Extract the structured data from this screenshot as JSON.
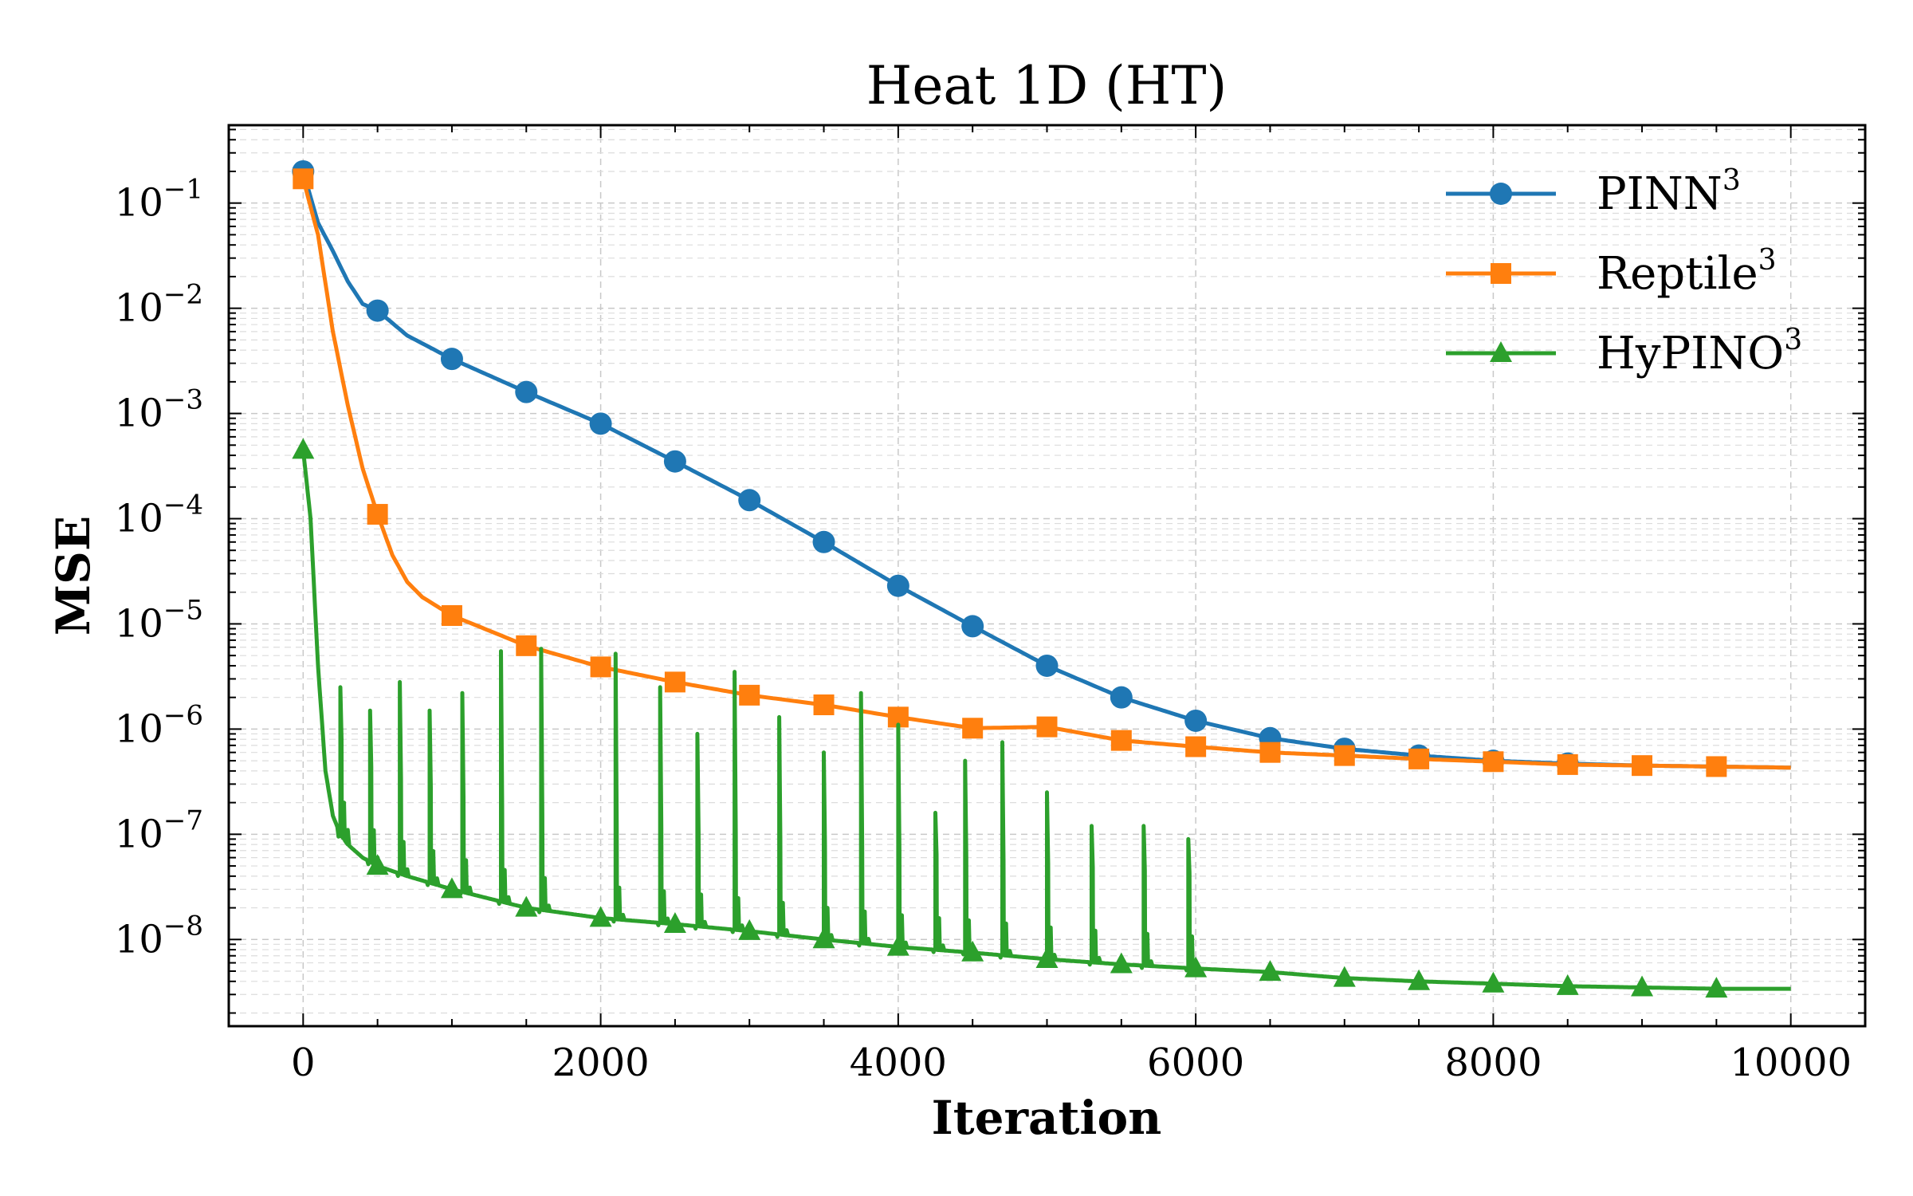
{
  "chart_data": {
    "type": "line",
    "title": "Heat 1D (HT)",
    "xlabel": "Iteration",
    "ylabel": "MSE",
    "yscale": "log",
    "xlim": [
      -500,
      10500
    ],
    "ylim": [
      1.5e-09,
      0.55
    ],
    "xticks": [
      0,
      2000,
      4000,
      6000,
      8000,
      10000
    ],
    "xtick_labels": [
      "0",
      "2000",
      "4000",
      "6000",
      "8000",
      "10000"
    ],
    "yticks": [
      {
        "value": 0.1,
        "base": "10",
        "exp": "−1"
      },
      {
        "value": 0.01,
        "base": "10",
        "exp": "−2"
      },
      {
        "value": 0.001,
        "base": "10",
        "exp": "−3"
      },
      {
        "value": 0.0001,
        "base": "10",
        "exp": "−4"
      },
      {
        "value": 1e-05,
        "base": "10",
        "exp": "−5"
      },
      {
        "value": 1e-06,
        "base": "10",
        "exp": "−6"
      },
      {
        "value": 1e-07,
        "base": "10",
        "exp": "−7"
      },
      {
        "value": 1e-08,
        "base": "10",
        "exp": "−8"
      }
    ],
    "grid": true,
    "legend_position": "top-right",
    "series": [
      {
        "name": "PINN",
        "sup": "3",
        "color": "#1f77b4",
        "marker": "circle",
        "x": [
          0,
          100,
          200,
          300,
          400,
          500,
          700,
          1000,
          1500,
          2000,
          2500,
          3000,
          3500,
          4000,
          4500,
          5000,
          5500,
          6000,
          6500,
          7000,
          7500,
          8000,
          8500,
          9000,
          9500,
          10000
        ],
        "y": [
          0.2,
          0.065,
          0.035,
          0.018,
          0.011,
          0.0095,
          0.0055,
          0.0033,
          0.0016,
          0.0008,
          0.00035,
          0.00015,
          6e-05,
          2.3e-05,
          9.5e-06,
          4e-06,
          2e-06,
          1.2e-06,
          8.2e-07,
          6.5e-07,
          5.6e-07,
          5e-07,
          4.7e-07,
          4.5e-07,
          4.4e-07,
          4.3e-07
        ],
        "marker_x": [
          0,
          500,
          1000,
          1500,
          2000,
          2500,
          3000,
          3500,
          4000,
          4500,
          5000,
          5500,
          6000,
          6500,
          7000,
          7500,
          8000,
          8500
        ]
      },
      {
        "name": "Reptile",
        "sup": "3",
        "color": "#ff7f0e",
        "marker": "square",
        "x": [
          0,
          100,
          200,
          300,
          400,
          500,
          600,
          700,
          800,
          1000,
          1500,
          2000,
          2500,
          3000,
          3500,
          4000,
          4500,
          5000,
          5500,
          6000,
          6500,
          7000,
          7500,
          8000,
          8500,
          9000,
          9500,
          10000
        ],
        "y": [
          0.17,
          0.05,
          0.006,
          0.0012,
          0.0003,
          0.00011,
          4.5e-05,
          2.5e-05,
          1.8e-05,
          1.2e-05,
          6.2e-06,
          3.9e-06,
          2.8e-06,
          2.1e-06,
          1.7e-06,
          1.3e-06,
          1.02e-06,
          1.05e-06,
          7.8e-07,
          6.8e-07,
          6e-07,
          5.6e-07,
          5.2e-07,
          4.9e-07,
          4.6e-07,
          4.5e-07,
          4.4e-07,
          4.3e-07
        ],
        "marker_x": [
          0,
          500,
          1000,
          1500,
          2000,
          2500,
          3000,
          3500,
          4000,
          4500,
          5000,
          5500,
          6000,
          6500,
          7000,
          7500,
          8000,
          8500,
          9000,
          9500
        ]
      },
      {
        "name": "HyPINO",
        "sup": "3",
        "color": "#2ca02c",
        "marker": "triangle",
        "x": [
          0,
          50,
          100,
          150,
          200,
          250,
          300,
          400,
          500,
          700,
          1000,
          1500,
          2000,
          2500,
          3000,
          3500,
          4000,
          4500,
          5000,
          5500,
          6000,
          6500,
          7000,
          7500,
          8000,
          8500,
          9000,
          9500,
          10000
        ],
        "y": [
          0.00045,
          0.0001,
          4e-06,
          4e-07,
          1.5e-07,
          1e-07,
          8e-08,
          6e-08,
          5e-08,
          4e-08,
          3e-08,
          2e-08,
          1.6e-08,
          1.4e-08,
          1.2e-08,
          1e-08,
          8.5e-09,
          7.5e-09,
          6.5e-09,
          5.8e-09,
          5.3e-09,
          4.9e-09,
          4.3e-09,
          4e-09,
          3.8e-09,
          3.6e-09,
          3.5e-09,
          3.4e-09,
          3.4e-09
        ],
        "marker_x": [
          0,
          500,
          1000,
          1500,
          2000,
          2500,
          3000,
          3500,
          4000,
          4500,
          5000,
          5500,
          6000,
          6500,
          7000,
          7500,
          8000,
          8500,
          9000,
          9500
        ],
        "spikes": [
          {
            "x": 250,
            "peak": 2.5e-06
          },
          {
            "x": 450,
            "peak": 1.5e-06
          },
          {
            "x": 650,
            "peak": 2.8e-06
          },
          {
            "x": 850,
            "peak": 1.5e-06
          },
          {
            "x": 1070,
            "peak": 2.2e-06
          },
          {
            "x": 1330,
            "peak": 5.5e-06
          },
          {
            "x": 1600,
            "peak": 5.8e-06
          },
          {
            "x": 2100,
            "peak": 5.2e-06
          },
          {
            "x": 2400,
            "peak": 2.5e-06
          },
          {
            "x": 2650,
            "peak": 9e-07
          },
          {
            "x": 2900,
            "peak": 3.5e-06
          },
          {
            "x": 3200,
            "peak": 1.3e-06
          },
          {
            "x": 3500,
            "peak": 6e-07
          },
          {
            "x": 3750,
            "peak": 2.2e-06
          },
          {
            "x": 4000,
            "peak": 1.1e-06
          },
          {
            "x": 4250,
            "peak": 1.6e-07
          },
          {
            "x": 4450,
            "peak": 5e-07
          },
          {
            "x": 4700,
            "peak": 7.5e-07
          },
          {
            "x": 5000,
            "peak": 2.5e-07
          },
          {
            "x": 5300,
            "peak": 1.2e-07
          },
          {
            "x": 5650,
            "peak": 1.2e-07
          },
          {
            "x": 5950,
            "peak": 9e-08
          }
        ]
      }
    ]
  }
}
